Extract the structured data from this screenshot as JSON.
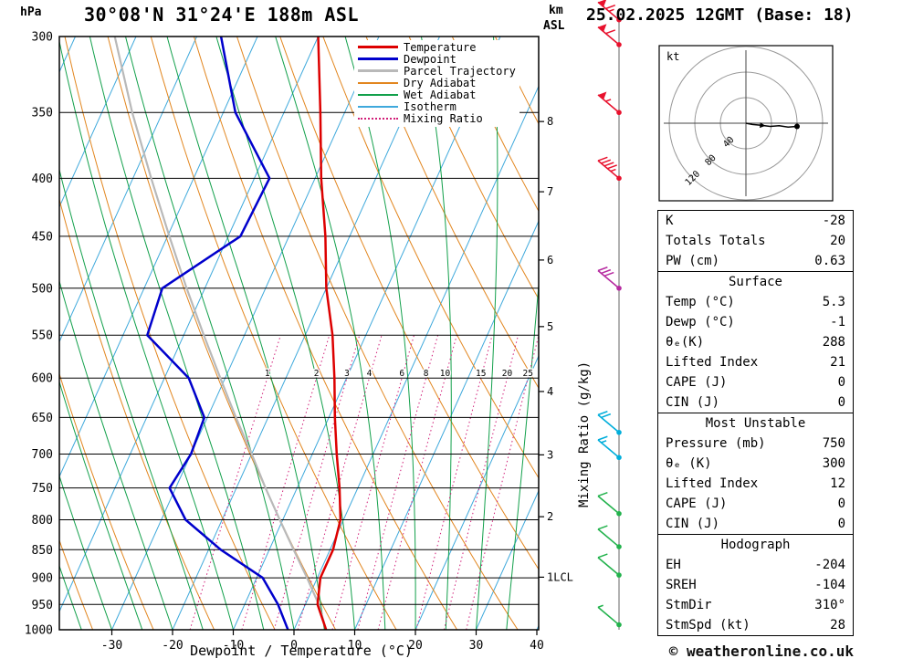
{
  "header": {
    "station_title": "30°08'N 31°24'E 188m ASL",
    "datetime_title": "25.02.2025 12GMT (Base: 18)"
  },
  "labels": {
    "hpa": "hPa",
    "km": "km",
    "asl": "ASL",
    "kt": "kt",
    "mixing_ratio_axis": "Mixing Ratio (g/kg)",
    "xaxis": "Dewpoint / Temperature (°C)"
  },
  "footer": {
    "copyright": "© weatheronline.co.uk"
  },
  "legend": {
    "entries": [
      {
        "label": "Temperature",
        "color": "#dd0000",
        "width": 3,
        "dotted": false
      },
      {
        "label": "Dewpoint",
        "color": "#0000cc",
        "width": 3,
        "dotted": false
      },
      {
        "label": "Parcel Trajectory",
        "color": "#b9b9b9",
        "width": 3,
        "dotted": false
      },
      {
        "label": "Dry Adiabat",
        "color": "#e2861f",
        "width": 2,
        "dotted": false
      },
      {
        "label": "Wet Adiabat",
        "color": "#12a04b",
        "width": 2,
        "dotted": false
      },
      {
        "label": "Isotherm",
        "color": "#3fa9dc",
        "width": 2,
        "dotted": false
      },
      {
        "label": "Mixing Ratio",
        "color": "#d11e78",
        "width": 2,
        "dotted": true
      }
    ]
  },
  "chart_data": {
    "type": "line",
    "subtype": "skew-t-log-p-sounding",
    "x_axis": {
      "label": "Dewpoint / Temperature (°C)",
      "unit": "°C",
      "ticks": [
        {
          "value": -30,
          "label": "-30"
        },
        {
          "value": -20,
          "label": "-20"
        },
        {
          "value": -10,
          "label": "-10"
        },
        {
          "value": 0,
          "label": "0"
        },
        {
          "value": 10,
          "label": "10"
        },
        {
          "value": 20,
          "label": "20"
        },
        {
          "value": 30,
          "label": "30"
        },
        {
          "value": 40,
          "label": "40"
        }
      ]
    },
    "y_axis": {
      "label": "hPa",
      "scale": "log",
      "ticks": [
        300,
        350,
        400,
        450,
        500,
        550,
        600,
        650,
        700,
        750,
        800,
        850,
        900,
        950,
        1000
      ]
    },
    "km_ticks": [
      {
        "p": 356.5,
        "label": "8"
      },
      {
        "p": 411.1,
        "label": "7"
      },
      {
        "p": 472.2,
        "label": "6"
      },
      {
        "p": 540.5,
        "label": "5"
      },
      {
        "p": 616.6,
        "label": "4"
      },
      {
        "p": 701.2,
        "label": "3"
      },
      {
        "p": 795.0,
        "label": "2"
      },
      {
        "p": 898.8,
        "label": "1LCL"
      }
    ],
    "series": [
      {
        "name": "Temperature",
        "color": "#dd0000",
        "width": 2.5,
        "points": [
          [
            1000,
            5.3
          ],
          [
            950,
            2
          ],
          [
            900,
            0.5
          ],
          [
            850,
            0.5
          ],
          [
            800,
            -0.5
          ],
          [
            750,
            -3
          ],
          [
            700,
            -6
          ],
          [
            650,
            -9
          ],
          [
            600,
            -12
          ],
          [
            550,
            -15.5
          ],
          [
            500,
            -20
          ],
          [
            450,
            -24
          ],
          [
            400,
            -29
          ],
          [
            350,
            -34
          ],
          [
            300,
            -40
          ]
        ]
      },
      {
        "name": "Dewpoint",
        "color": "#0000cc",
        "width": 2.5,
        "points": [
          [
            1000,
            -1
          ],
          [
            950,
            -4.5
          ],
          [
            900,
            -9
          ],
          [
            850,
            -18
          ],
          [
            800,
            -26
          ],
          [
            750,
            -31
          ],
          [
            700,
            -30
          ],
          [
            650,
            -30.5
          ],
          [
            600,
            -36
          ],
          [
            550,
            -46
          ],
          [
            500,
            -47
          ],
          [
            450,
            -38
          ],
          [
            400,
            -37.5
          ],
          [
            350,
            -48
          ],
          [
            300,
            -56
          ]
        ]
      },
      {
        "name": "Parcel Trajectory",
        "color": "#b9b9b9",
        "width": 2.2,
        "points": [
          [
            1000,
            5.3
          ],
          [
            950,
            2.2
          ],
          [
            900,
            -1.7
          ],
          [
            850,
            -6
          ],
          [
            800,
            -10.5
          ],
          [
            750,
            -15.2
          ],
          [
            700,
            -20
          ],
          [
            650,
            -25.3
          ],
          [
            600,
            -30.8
          ],
          [
            550,
            -36.7
          ],
          [
            500,
            -43
          ],
          [
            450,
            -49.7
          ],
          [
            400,
            -57
          ],
          [
            350,
            -65
          ],
          [
            300,
            -73.5
          ]
        ]
      }
    ],
    "background": {
      "isotherms": {
        "color": "#3fa9dc",
        "temps": [
          -100,
          -90,
          -80,
          -70,
          -60,
          -50,
          -40,
          -30,
          -20,
          -10,
          0,
          10,
          20,
          30,
          40
        ]
      },
      "dry_adiabats": {
        "color": "#e2861f",
        "thetas": [
          240,
          250,
          260,
          270,
          280,
          290,
          300,
          310,
          320,
          330,
          340,
          350,
          360,
          370,
          380
        ]
      },
      "wet_adiabats": {
        "color": "#12a04b",
        "surface_temps": [
          -55,
          -50,
          -45,
          -40,
          -35,
          -30,
          -25,
          -20,
          -15,
          -10,
          -5,
          0,
          5,
          10,
          15,
          20,
          25,
          30,
          35
        ]
      },
      "mixing_ratio": {
        "color": "#d11e78",
        "label_pressure": 600,
        "top_pressure": 550,
        "values": [
          {
            "w": 1,
            "label": "1"
          },
          {
            "w": 2,
            "label": "2"
          },
          {
            "w": 3,
            "label": "3"
          },
          {
            "w": 4,
            "label": "4"
          },
          {
            "w": 6,
            "label": "6"
          },
          {
            "w": 8,
            "label": "8"
          },
          {
            "w": 10,
            "label": "10"
          },
          {
            "w": 15,
            "label": "15"
          },
          {
            "w": 20,
            "label": "20"
          },
          {
            "w": 25,
            "label": "25"
          }
        ]
      }
    },
    "wind_barbs": {
      "from_deg": 310,
      "barbs": [
        {
          "p": 290,
          "kt": 65,
          "color": "#e8112d"
        },
        {
          "p": 305,
          "kt": 60,
          "color": "#e8112d"
        },
        {
          "p": 350,
          "kt": 55,
          "color": "#e8112d"
        },
        {
          "p": 400,
          "kt": 45,
          "color": "#e8112d"
        },
        {
          "p": 500,
          "kt": 30,
          "color": "#b62aa0"
        },
        {
          "p": 670,
          "kt": 20,
          "color": "#00aedb"
        },
        {
          "p": 705,
          "kt": 15,
          "color": "#00aedb"
        },
        {
          "p": 790,
          "kt": 10,
          "color": "#22b24c"
        },
        {
          "p": 845,
          "kt": 10,
          "color": "#22b24c"
        },
        {
          "p": 895,
          "kt": 10,
          "color": "#22b24c"
        },
        {
          "p": 990,
          "kt": 5,
          "color": "#22b24c"
        }
      ]
    },
    "hodograph": {
      "unit_label": "kt",
      "rings": [
        {
          "kt": 40,
          "label": "40"
        },
        {
          "kt": 80,
          "label": "80"
        },
        {
          "kt": 120,
          "label": "120"
        }
      ],
      "trace_kt": [
        [
          0,
          0
        ],
        [
          10,
          -2
        ],
        [
          22,
          -3
        ],
        [
          38,
          -5
        ],
        [
          52,
          -4
        ],
        [
          66,
          -6
        ],
        [
          80,
          -5
        ]
      ]
    }
  },
  "tables": {
    "boxes": [
      {
        "name": "stability-indices",
        "header": "",
        "rows": [
          [
            "K",
            "-28"
          ],
          [
            "Totals Totals",
            "20"
          ],
          [
            "PW (cm)",
            "0.63"
          ]
        ]
      },
      {
        "name": "surface",
        "header": "Surface",
        "rows": [
          [
            "Temp (°C)",
            "5.3"
          ],
          [
            "Dewp (°C)",
            "-1"
          ],
          [
            "θₑ(K)",
            "288"
          ],
          [
            "Lifted Index",
            "21"
          ],
          [
            "CAPE (J)",
            "0"
          ],
          [
            "CIN (J)",
            "0"
          ]
        ]
      },
      {
        "name": "most-unstable",
        "header": "Most Unstable",
        "rows": [
          [
            "Pressure (mb)",
            "750"
          ],
          [
            "θₑ (K)",
            "300"
          ],
          [
            "Lifted Index",
            "12"
          ],
          [
            "CAPE (J)",
            "0"
          ],
          [
            "CIN (J)",
            "0"
          ]
        ]
      },
      {
        "name": "hodograph",
        "header": "Hodograph",
        "rows": [
          [
            "EH",
            "-204"
          ],
          [
            "SREH",
            "-104"
          ],
          [
            "StmDir",
            "310°"
          ],
          [
            "StmSpd (kt)",
            "28"
          ]
        ]
      }
    ]
  }
}
